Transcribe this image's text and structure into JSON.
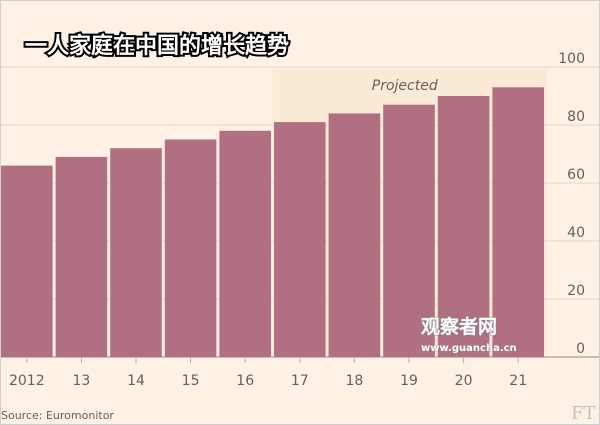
{
  "chart_data": {
    "type": "bar",
    "title": "一人家庭在中国的增长趋势",
    "categories": [
      "2012",
      "13",
      "14",
      "15",
      "16",
      "17",
      "18",
      "19",
      "20",
      "21"
    ],
    "values": [
      66,
      69,
      72,
      75,
      78,
      81,
      84,
      87,
      90,
      93
    ],
    "ylim": [
      0,
      100
    ],
    "yticks": [
      "0",
      "20",
      "40",
      "60",
      "80",
      "100"
    ],
    "bar_color": "#b07081",
    "grid": true,
    "projected_label": "Projected",
    "projected_from": "17",
    "projected_shade_color": "#fbebd6",
    "source": "Source: Euromonitor"
  },
  "watermark": {
    "name": "观察者网",
    "url": "www.guancha.cn"
  },
  "logo": {
    "text": "FT"
  }
}
